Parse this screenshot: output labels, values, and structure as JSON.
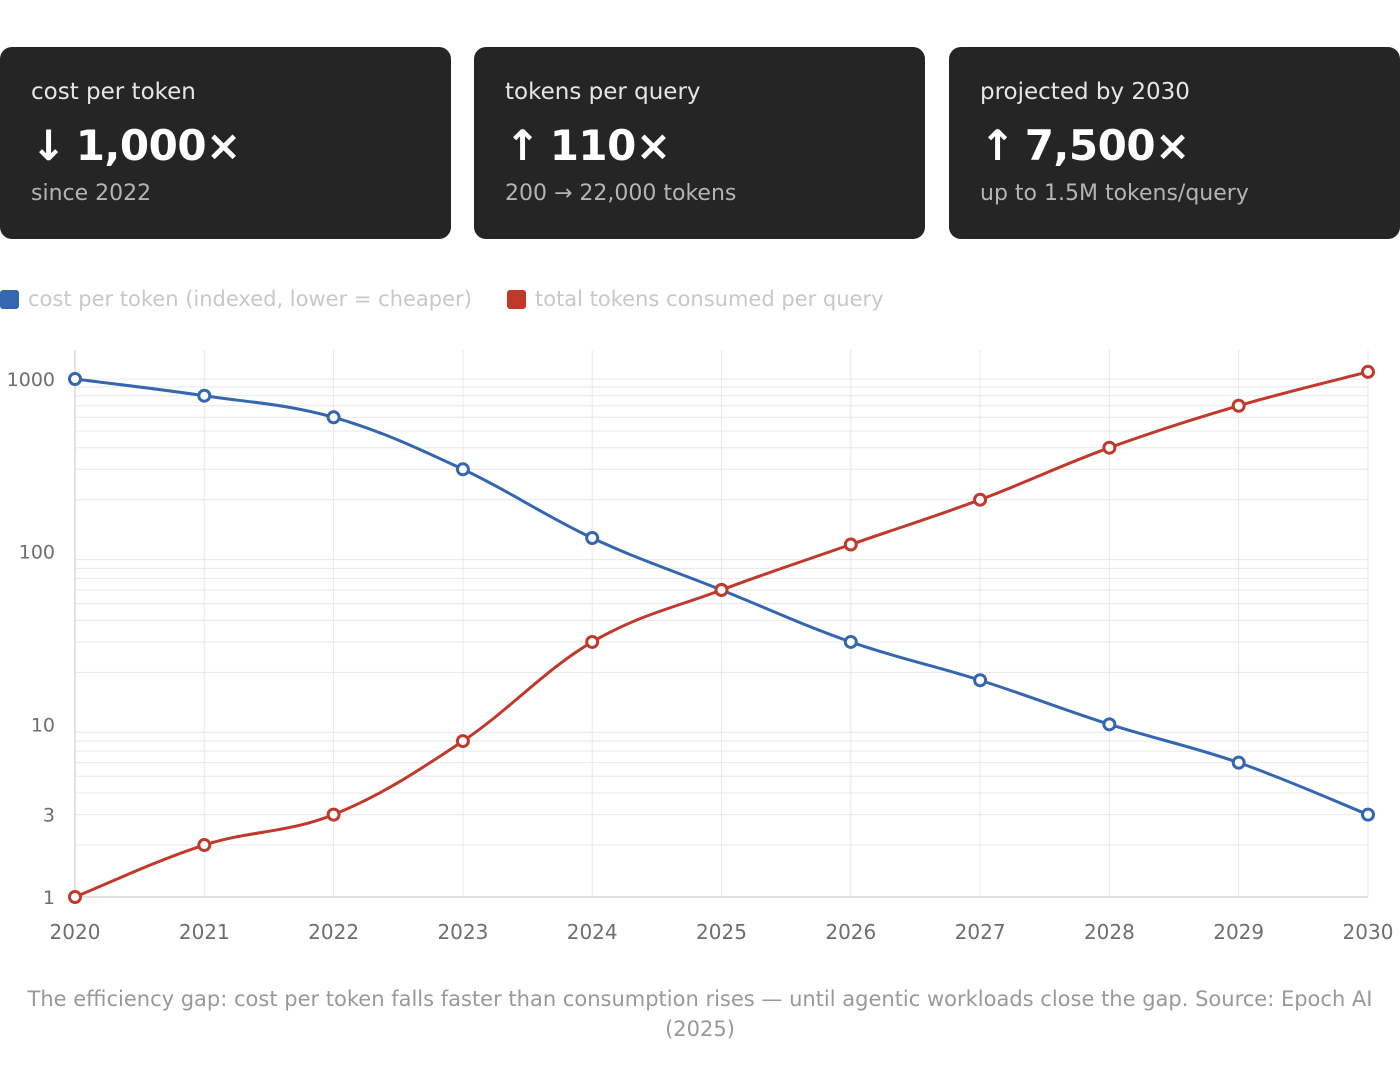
{
  "cards": [
    {
      "label": "cost per token",
      "arrow": "↓",
      "value": "1,000×",
      "sub": "since 2022"
    },
    {
      "label": "tokens per query",
      "arrow": "↑",
      "value": "110×",
      "sub": "200 → 22,000 tokens"
    },
    {
      "label": "projected by 2030",
      "arrow": "↑",
      "value": "7,500×",
      "sub": "up to 1.5M tokens/query"
    }
  ],
  "colors": {
    "card_background": "#252525",
    "cost_series": "#3566b0",
    "tokens_series": "#c0392b",
    "grid": "#e8e8e8",
    "axis_text": "#6e6e6e",
    "legend_text": "#c8c8c8",
    "caption_text": "#999999"
  },
  "chart_data": {
    "type": "line",
    "title": "",
    "xlabel": "",
    "ylabel": "",
    "y_scale": "log",
    "ylim": [
      1,
      1000
    ],
    "grid": true,
    "legend_position": "top-left",
    "x": [
      2020,
      2021,
      2022,
      2023,
      2024,
      2025,
      2026,
      2027,
      2028,
      2029,
      2030
    ],
    "x_tick_labels": [
      "2020",
      "2021",
      "2022",
      "2023",
      "2024",
      "2025",
      "2026",
      "2027",
      "2028",
      "2029",
      "2030"
    ],
    "y_ticks": [
      1,
      3,
      10,
      100,
      1000
    ],
    "y_tick_labels": [
      "1",
      "3",
      "10",
      "100",
      "1000"
    ],
    "series": [
      {
        "name": "cost per token (indexed, lower = cheaper)",
        "color": "#3566b0",
        "values": [
          1000,
          800,
          600,
          300,
          120,
          60,
          30,
          18,
          10,
          6,
          3
        ]
      },
      {
        "name": "total tokens consumed per query",
        "color": "#c0392b",
        "values": [
          1,
          2,
          3,
          8,
          30,
          60,
          110,
          200,
          400,
          700,
          1100
        ]
      }
    ]
  },
  "caption": "The efficiency gap: cost per token falls faster than consumption rises — until agentic workloads close the gap. Source: Epoch AI (2025)"
}
